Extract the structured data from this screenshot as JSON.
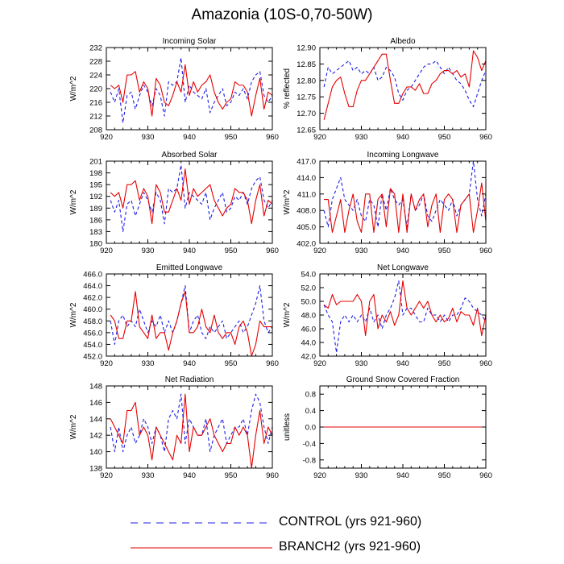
{
  "title": "Amazonia (10S-0,70-50W)",
  "legend": {
    "control_label": "CONTROL (yrs 921-960)",
    "branch_label": "BRANCH2 (yrs 921-960)"
  },
  "colors": {
    "control": "#1f1fe6",
    "branch": "#e60000",
    "axis": "#000000"
  },
  "chart_data": [
    {
      "type": "line",
      "title": "Incoming Solar",
      "xlabel": "",
      "ylabel": "W/m^2",
      "xlim": [
        920,
        960
      ],
      "ylim": [
        208,
        232
      ],
      "xticks": [
        "920",
        "930",
        "940",
        "950",
        "960"
      ],
      "yticks": [
        "208",
        "212",
        "216",
        "220",
        "224",
        "228",
        "232"
      ],
      "x": [
        921,
        922,
        923,
        924,
        925,
        926,
        927,
        928,
        929,
        930,
        931,
        932,
        933,
        934,
        935,
        936,
        937,
        938,
        939,
        940,
        941,
        942,
        943,
        944,
        945,
        946,
        947,
        948,
        949,
        950,
        951,
        952,
        953,
        954,
        955,
        956,
        957,
        958,
        959,
        960
      ],
      "series": [
        {
          "name": "CONTROL",
          "style": "dashed",
          "values": [
            219,
            216,
            220,
            210,
            218,
            219,
            214,
            218,
            221,
            219,
            215,
            220,
            218,
            212,
            222,
            221,
            222,
            229,
            216,
            221,
            219,
            218,
            217,
            220,
            213,
            216,
            218,
            220,
            215,
            216,
            219,
            218,
            220,
            217,
            222,
            224,
            225,
            218,
            216,
            218
          ]
        },
        {
          "name": "BRANCH2",
          "style": "solid",
          "values": [
            221,
            220,
            221,
            216,
            224,
            224,
            225,
            219,
            222,
            220,
            212,
            223,
            221,
            216,
            215,
            218,
            222,
            219,
            227,
            218,
            222,
            219,
            221,
            222,
            224,
            219,
            216,
            214,
            216,
            217,
            222,
            221,
            221,
            219,
            212,
            218,
            223,
            214,
            219,
            218
          ]
        }
      ]
    },
    {
      "type": "line",
      "title": "Albedo",
      "xlabel": "",
      "ylabel": "% reflected",
      "xlim": [
        920,
        960
      ],
      "ylim": [
        12.65,
        12.9
      ],
      "xticks": [
        "920",
        "930",
        "940",
        "950",
        "960"
      ],
      "yticks": [
        "12.65",
        "12.70",
        "12.75",
        "12.80",
        "12.85",
        "12.90"
      ],
      "x": [
        921,
        922,
        923,
        924,
        925,
        926,
        927,
        928,
        929,
        930,
        931,
        932,
        933,
        934,
        935,
        936,
        937,
        938,
        939,
        940,
        941,
        942,
        943,
        944,
        945,
        946,
        947,
        948,
        949,
        950,
        951,
        952,
        953,
        954,
        955,
        956,
        957,
        958,
        959,
        960
      ],
      "series": [
        {
          "name": "CONTROL",
          "style": "dashed",
          "values": [
            12.78,
            12.84,
            12.82,
            12.83,
            12.84,
            12.85,
            12.86,
            12.83,
            12.84,
            12.82,
            12.83,
            12.82,
            12.84,
            12.8,
            12.81,
            12.84,
            12.83,
            12.81,
            12.76,
            12.74,
            12.77,
            12.78,
            12.8,
            12.82,
            12.84,
            12.85,
            12.85,
            12.86,
            12.84,
            12.82,
            12.84,
            12.82,
            12.8,
            12.79,
            12.77,
            12.74,
            12.72,
            12.76,
            12.8,
            12.83
          ]
        },
        {
          "name": "BRANCH2",
          "style": "solid",
          "values": [
            12.68,
            12.73,
            12.78,
            12.8,
            12.81,
            12.76,
            12.72,
            12.72,
            12.77,
            12.8,
            12.8,
            12.82,
            12.84,
            12.86,
            12.88,
            12.88,
            12.8,
            12.73,
            12.73,
            12.76,
            12.78,
            12.78,
            12.77,
            12.79,
            12.76,
            12.76,
            12.79,
            12.8,
            12.82,
            12.83,
            12.83,
            12.82,
            12.83,
            12.81,
            12.82,
            12.78,
            12.89,
            12.87,
            12.83,
            12.86
          ]
        }
      ]
    },
    {
      "type": "line",
      "title": "Absorbed Solar",
      "xlabel": "",
      "ylabel": "W/m^2",
      "xlim": [
        920,
        960
      ],
      "ylim": [
        180,
        201
      ],
      "xticks": [
        "920",
        "930",
        "940",
        "950",
        "960"
      ],
      "yticks": [
        "180",
        "183",
        "186",
        "189",
        "192",
        "195",
        "198",
        "201"
      ],
      "x": [
        921,
        922,
        923,
        924,
        925,
        926,
        927,
        928,
        929,
        930,
        931,
        932,
        933,
        934,
        935,
        936,
        937,
        938,
        939,
        940,
        941,
        942,
        943,
        944,
        945,
        946,
        947,
        948,
        949,
        950,
        951,
        952,
        953,
        954,
        955,
        956,
        957,
        958,
        959,
        960
      ],
      "series": [
        {
          "name": "CONTROL",
          "style": "dashed",
          "values": [
            191,
            188,
            191,
            183,
            190,
            191,
            187,
            190,
            193,
            191,
            188,
            193,
            191,
            185,
            194,
            193,
            194,
            200,
            189,
            193,
            192,
            191,
            190,
            193,
            186,
            189,
            191,
            193,
            188,
            189,
            192,
            191,
            193,
            190,
            194,
            196,
            197,
            191,
            189,
            191
          ]
        },
        {
          "name": "BRANCH2",
          "style": "solid",
          "values": [
            193,
            192,
            193,
            189,
            195,
            195,
            196,
            191,
            194,
            192,
            185,
            195,
            193,
            188,
            188,
            191,
            194,
            191,
            199,
            190,
            194,
            192,
            193,
            194,
            195,
            191,
            189,
            187,
            189,
            190,
            194,
            193,
            193,
            191,
            185,
            191,
            195,
            187,
            191,
            190
          ]
        }
      ]
    },
    {
      "type": "line",
      "title": "Incoming Longwave",
      "xlabel": "",
      "ylabel": "W/m^2",
      "xlim": [
        920,
        960
      ],
      "ylim": [
        402,
        417
      ],
      "xticks": [
        "920",
        "930",
        "940",
        "950",
        "960"
      ],
      "yticks": [
        "402.0",
        "405.0",
        "408.0",
        "411.0",
        "414.0",
        "417.0"
      ],
      "x": [
        921,
        922,
        923,
        924,
        925,
        926,
        927,
        928,
        929,
        930,
        931,
        932,
        933,
        934,
        935,
        936,
        937,
        938,
        939,
        940,
        941,
        942,
        943,
        944,
        945,
        946,
        947,
        948,
        949,
        950,
        951,
        952,
        953,
        954,
        955,
        956,
        957,
        958,
        959,
        960
      ],
      "series": [
        {
          "name": "CONTROL",
          "style": "dashed",
          "values": [
            408,
            405,
            410,
            412,
            414,
            410,
            409,
            408,
            410,
            407,
            406,
            410,
            409,
            405,
            411,
            408,
            412,
            410,
            409,
            410,
            405,
            411,
            408,
            409,
            411,
            407,
            406,
            408,
            410,
            409,
            408,
            410,
            407,
            409,
            410,
            411,
            417,
            410,
            407,
            411
          ]
        },
        {
          "name": "BRANCH2",
          "style": "solid",
          "values": [
            410,
            410,
            404,
            407,
            410,
            404,
            408,
            411,
            406,
            404,
            411,
            411,
            404,
            410,
            411,
            405,
            412,
            411,
            404,
            411,
            404,
            411,
            408,
            410,
            411,
            405,
            409,
            411,
            404,
            410,
            411,
            410,
            404,
            409,
            410,
            411,
            404,
            408,
            413,
            406
          ]
        }
      ]
    },
    {
      "type": "line",
      "title": "Emitted Longwave",
      "xlabel": "",
      "ylabel": "W/m^2",
      "xlim": [
        920,
        960
      ],
      "ylim": [
        452,
        466
      ],
      "xticks": [
        "920",
        "930",
        "940",
        "950",
        "960"
      ],
      "yticks": [
        "452.0",
        "454.0",
        "456.0",
        "458.0",
        "460.0",
        "462.0",
        "464.0",
        "466.0"
      ],
      "x": [
        921,
        922,
        923,
        924,
        925,
        926,
        927,
        928,
        929,
        930,
        931,
        932,
        933,
        934,
        935,
        936,
        937,
        938,
        939,
        940,
        941,
        942,
        943,
        944,
        945,
        946,
        947,
        948,
        949,
        950,
        951,
        952,
        953,
        954,
        955,
        956,
        957,
        958,
        959,
        960
      ],
      "series": [
        {
          "name": "CONTROL",
          "style": "dashed",
          "values": [
            458,
            454,
            458,
            459,
            457,
            458,
            457,
            460,
            458,
            456,
            458,
            457,
            459,
            456,
            458,
            456,
            458,
            461,
            464,
            456,
            458,
            459,
            456,
            455,
            457,
            456,
            457,
            458,
            455,
            456,
            457,
            458,
            456,
            457,
            459,
            461,
            464,
            458,
            456,
            457
          ]
        },
        {
          "name": "BRANCH2",
          "style": "solid",
          "values": [
            459,
            458,
            455,
            455,
            458,
            458,
            463,
            457,
            456,
            455,
            459,
            455,
            456,
            456,
            453,
            456,
            458,
            461,
            463,
            456,
            456,
            457,
            460,
            457,
            456,
            459,
            456,
            455,
            456,
            456,
            454,
            457,
            458,
            456,
            452,
            454,
            458,
            457,
            457,
            457
          ]
        }
      ]
    },
    {
      "type": "line",
      "title": "Net Longwave",
      "xlabel": "",
      "ylabel": "W/m^2",
      "xlim": [
        920,
        960
      ],
      "ylim": [
        42,
        54
      ],
      "xticks": [
        "920",
        "930",
        "940",
        "950",
        "960"
      ],
      "yticks": [
        "42.0",
        "44.0",
        "46.0",
        "48.0",
        "50.0",
        "52.0",
        "54.0"
      ],
      "x": [
        921,
        922,
        923,
        924,
        925,
        926,
        927,
        928,
        929,
        930,
        931,
        932,
        933,
        934,
        935,
        936,
        937,
        938,
        939,
        940,
        941,
        942,
        943,
        944,
        945,
        946,
        947,
        948,
        949,
        950,
        951,
        952,
        953,
        954,
        955,
        956,
        957,
        958,
        959,
        960
      ],
      "series": [
        {
          "name": "CONTROL",
          "style": "dashed",
          "values": [
            49.5,
            48,
            47,
            42.5,
            47,
            48,
            47,
            48,
            47,
            48,
            47,
            49,
            47,
            48,
            46,
            48,
            49,
            50.5,
            53,
            48,
            49,
            49,
            48,
            47,
            47,
            49,
            48,
            48,
            47,
            48,
            47,
            48,
            48,
            49,
            50.5,
            50,
            49,
            48.5,
            48,
            47
          ]
        },
        {
          "name": "BRANCH2",
          "style": "solid",
          "values": [
            49.5,
            49,
            51,
            49.5,
            50,
            50,
            50,
            50,
            51,
            50,
            45,
            50,
            51,
            46,
            48,
            47,
            48.5,
            46.5,
            48,
            53,
            49,
            48,
            49,
            50,
            49,
            50,
            48,
            47,
            48,
            47,
            47.5,
            49,
            47,
            48.5,
            48,
            48,
            46.5,
            49,
            45,
            48
          ]
        }
      ]
    },
    {
      "type": "line",
      "title": "Net Radiation",
      "xlabel": "",
      "ylabel": "W/m^2",
      "xlim": [
        920,
        960
      ],
      "ylim": [
        138,
        148
      ],
      "xticks": [
        "920",
        "930",
        "940",
        "950",
        "960"
      ],
      "yticks": [
        "138",
        "140",
        "142",
        "144",
        "146",
        "148"
      ],
      "x": [
        921,
        922,
        923,
        924,
        925,
        926,
        927,
        928,
        929,
        930,
        931,
        932,
        933,
        934,
        935,
        936,
        937,
        938,
        939,
        940,
        941,
        942,
        943,
        944,
        945,
        946,
        947,
        948,
        949,
        950,
        951,
        952,
        953,
        954,
        955,
        956,
        957,
        958,
        959,
        960
      ],
      "series": [
        {
          "name": "CONTROL",
          "style": "dashed",
          "values": [
            143,
            140,
            143,
            140,
            142,
            143,
            141,
            142,
            144,
            143,
            141,
            143,
            142,
            140,
            144,
            145,
            144,
            147,
            141,
            144,
            143,
            142,
            142,
            144,
            140,
            142,
            143,
            144,
            141,
            142,
            143,
            143,
            144,
            142,
            145,
            147,
            146,
            143,
            141,
            143
          ]
        },
        {
          "name": "BRANCH2",
          "style": "solid",
          "values": [
            144,
            143,
            142,
            141,
            145,
            145,
            146,
            142,
            143,
            142,
            139,
            143,
            142,
            141,
            140,
            139,
            142,
            141,
            147,
            140,
            143,
            142,
            142,
            143,
            144,
            142,
            141,
            140,
            141,
            141,
            143,
            142,
            143,
            142,
            138,
            142,
            145,
            141,
            143,
            142
          ]
        }
      ]
    },
    {
      "type": "line",
      "title": "Ground Snow Covered Fraction",
      "xlabel": "",
      "ylabel": "unitless",
      "xlim": [
        920,
        960
      ],
      "ylim": [
        -1,
        1
      ],
      "xticks": [
        "920",
        "930",
        "940",
        "950",
        "960"
      ],
      "yticks": [
        "-0.8",
        "-0.4",
        "0.0",
        "0.4",
        "0.8"
      ],
      "ytick_values": [
        -0.8,
        -0.4,
        0.0,
        0.4,
        0.8
      ],
      "x": [
        921,
        960
      ],
      "series": [
        {
          "name": "CONTROL",
          "style": "dashed",
          "values": [
            0,
            0
          ]
        },
        {
          "name": "BRANCH2",
          "style": "solid",
          "values": [
            0,
            0
          ]
        }
      ]
    }
  ]
}
